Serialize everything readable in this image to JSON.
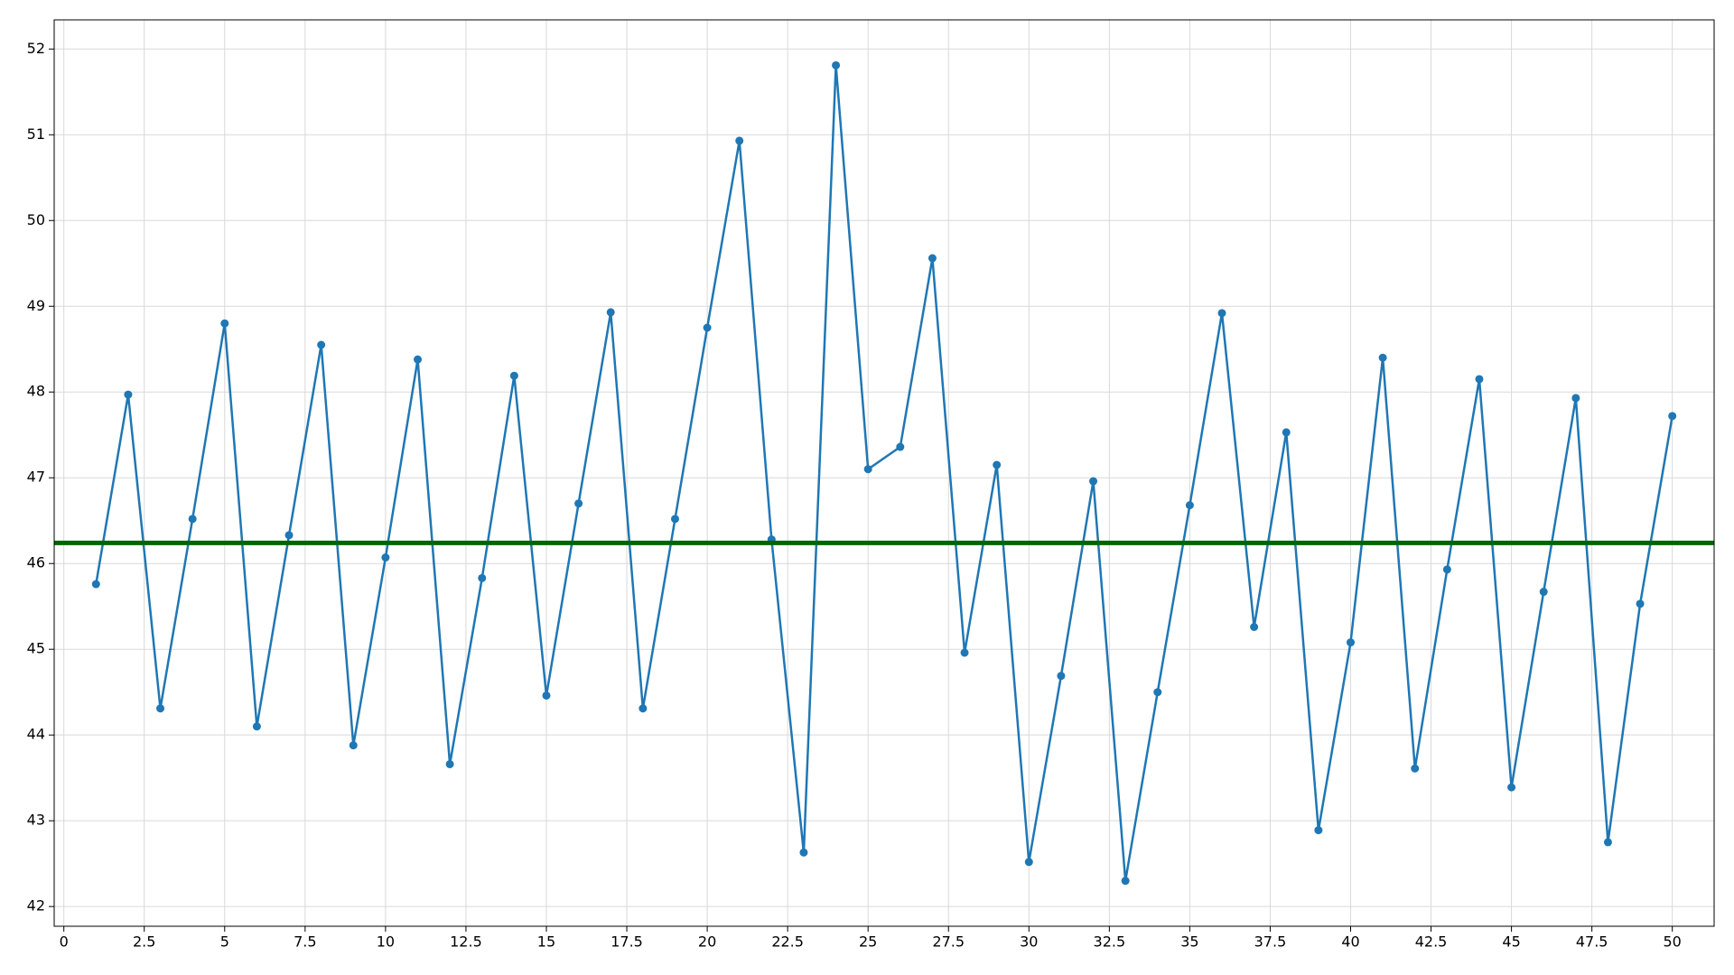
{
  "chart_data": {
    "type": "line",
    "x": [
      1,
      2,
      3,
      4,
      5,
      6,
      7,
      8,
      9,
      10,
      11,
      12,
      13,
      14,
      15,
      16,
      17,
      18,
      19,
      20,
      21,
      22,
      23,
      24,
      25,
      26,
      27,
      28,
      29,
      30,
      31,
      32,
      33,
      34,
      35,
      36,
      37,
      38,
      39,
      40,
      41,
      42,
      43,
      44,
      45,
      46,
      47,
      48,
      49,
      50
    ],
    "series": [
      {
        "color": "#1f77b4",
        "values": [
          45.76,
          47.97,
          44.31,
          46.52,
          48.8,
          44.1,
          46.33,
          48.55,
          43.88,
          46.07,
          48.38,
          43.66,
          45.83,
          48.19,
          44.46,
          46.7,
          48.93,
          44.31,
          46.52,
          48.75,
          50.93,
          46.28,
          42.63,
          51.81,
          47.1,
          47.36,
          49.56,
          44.96,
          47.15,
          42.52,
          44.69,
          46.96,
          42.3,
          44.5,
          46.68,
          48.92,
          45.26,
          47.53,
          42.89,
          45.08,
          48.4,
          43.61,
          45.93,
          48.15,
          43.39,
          45.67,
          47.93,
          42.75,
          45.53,
          47.72
        ]
      }
    ],
    "reference_line": {
      "value": 46.24,
      "color": "#006400"
    },
    "xlim": [
      -0.3,
      51.3
    ],
    "xticks": [
      0,
      2.5,
      5,
      7.5,
      10,
      12.5,
      15,
      17.5,
      20,
      22.5,
      25,
      27.5,
      30,
      32.5,
      35,
      37.5,
      40,
      42.5,
      45,
      47.5,
      50
    ],
    "ylim": [
      41.77,
      52.34
    ],
    "yticks": [
      42,
      43,
      44,
      45,
      46,
      47,
      48,
      49,
      50,
      51,
      52
    ],
    "grid": true
  }
}
